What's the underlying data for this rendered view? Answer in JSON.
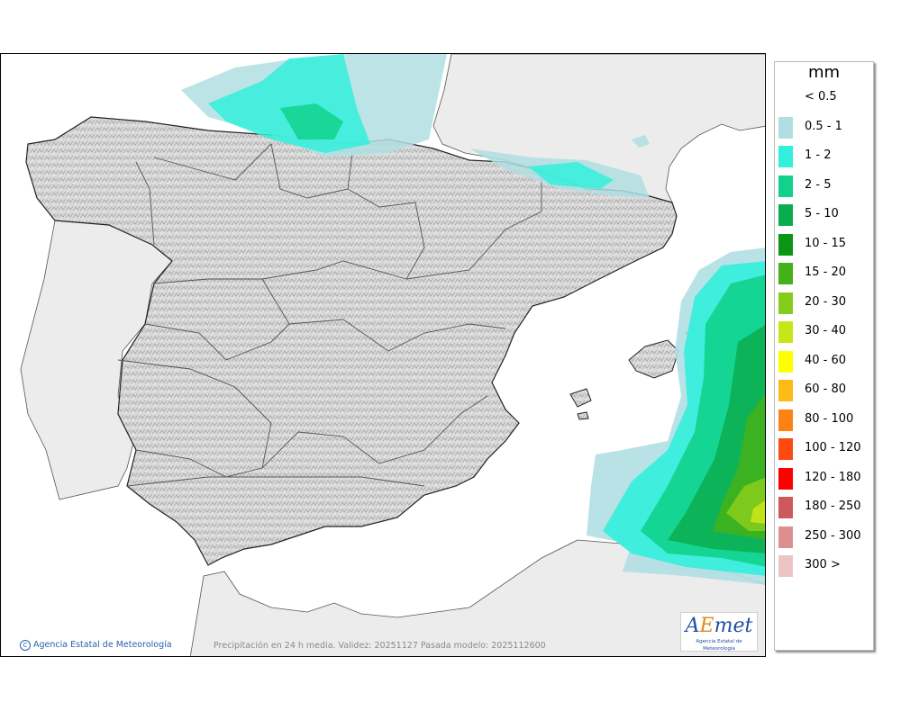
{
  "credit": "Agencia Estatal de Meteorología",
  "caption": "Precipitación en 24 h media. Validez: 20251127 Pasada modelo: 2025112600",
  "logo": {
    "word_a": "A",
    "word_e": "E",
    "word_rest": "met",
    "sub": "Agencia Estatal de Meteorología"
  },
  "legend": {
    "unit": "mm",
    "items": [
      {
        "label": "< 0.5",
        "color": ""
      },
      {
        "label": "0.5 - 1",
        "color": "#b0dfe3"
      },
      {
        "label": "1 - 2",
        "color": "#33f0dc"
      },
      {
        "label": "2 - 5",
        "color": "#11d28c"
      },
      {
        "label": "5 - 10",
        "color": "#0aad4d"
      },
      {
        "label": "10 - 15",
        "color": "#0a9614"
      },
      {
        "label": "15 - 20",
        "color": "#43b219"
      },
      {
        "label": "20 - 30",
        "color": "#86cc1c"
      },
      {
        "label": "30 - 40",
        "color": "#c6e617"
      },
      {
        "label": "40 - 60",
        "color": "#ffff00"
      },
      {
        "label": "60 - 80",
        "color": "#fcbb15"
      },
      {
        "label": "80 - 100",
        "color": "#fd8113"
      },
      {
        "label": "100 - 120",
        "color": "#fd4a11"
      },
      {
        "label": "120 - 180",
        "color": "#fe0000"
      },
      {
        "label": "180 - 250",
        "color": "#cc5a5a"
      },
      {
        "label": "250 - 300",
        "color": "#dd8f8f"
      },
      {
        "label": "300 >",
        "color": "#ecc4c4"
      }
    ]
  }
}
